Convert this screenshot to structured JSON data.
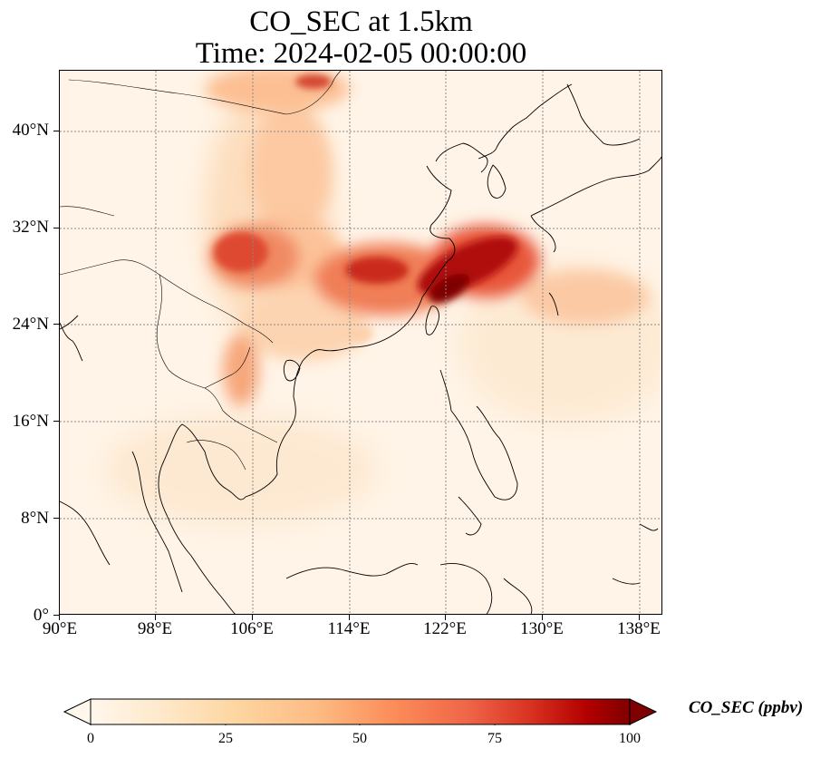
{
  "title": {
    "line1": "CO_SEC at 1.5km",
    "line2": "Time: 2024-02-05 00:00:00"
  },
  "map": {
    "projection": "PlateCarree",
    "lon_range": [
      90,
      141
    ],
    "lat_range": [
      0,
      45
    ],
    "gridlines": "dotted gray",
    "lat_ticks": [
      "0°",
      "8°N",
      "16°N",
      "24°N",
      "32°N",
      "40°N"
    ],
    "lon_ticks": [
      "90°E",
      "98°E",
      "106°E",
      "114°E",
      "122°E",
      "130°E",
      "138°E"
    ],
    "colormap": "OrRd",
    "features": [
      "coastlines",
      "country borders"
    ]
  },
  "colorbar": {
    "label": "CO_SEC (ppbv)",
    "ticks": [
      "0",
      "25",
      "50",
      "75",
      "100"
    ],
    "range": [
      0,
      100
    ],
    "extend": "both",
    "colors": [
      "#fff7ec",
      "#fee8c8",
      "#fdd49e",
      "#fdbb84",
      "#fc8d59",
      "#ef6548",
      "#d7301f",
      "#b30000",
      "#7f0000"
    ]
  }
}
